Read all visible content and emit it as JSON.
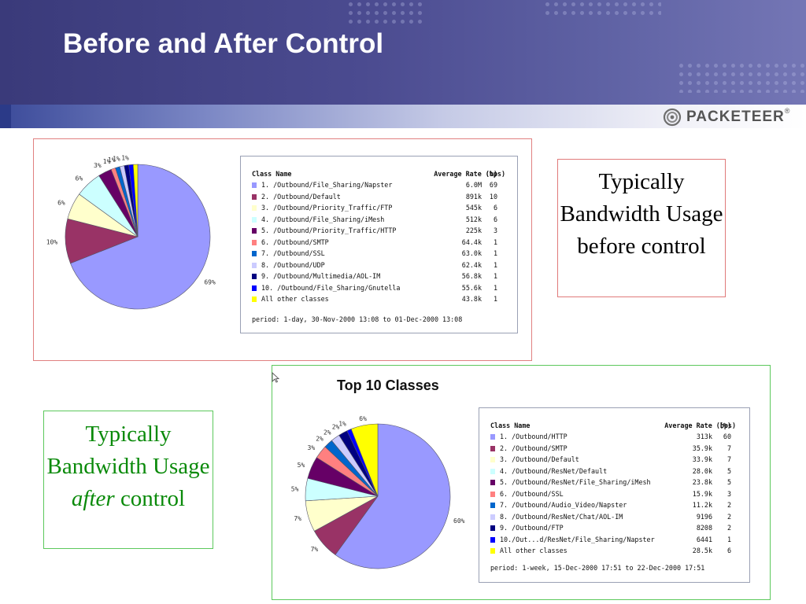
{
  "slide": {
    "title": "Before and After Control",
    "logo_text": "PACKETEER",
    "logo_mark": "®",
    "caption_before": "Typically Bandwidth Usage before control",
    "caption_after_prefix": "Typically Bandwidth Usage ",
    "caption_after_emph": "after",
    "caption_after_suffix": " control",
    "colors": {
      "header": "#4b4b90",
      "before_frame": "#e08080",
      "after_frame": "#5cc85c",
      "after_caption_text": "#0a8a0a"
    }
  },
  "chart_data": [
    {
      "type": "pie",
      "title": "",
      "legend_header": {
        "name": "Class Name",
        "rate": "Average Rate (bps)",
        "percent": "(%)"
      },
      "categories": [
        "1. /Outbound/File_Sharing/Napster",
        "2. /Outbound/Default",
        "3. /Outbound/Priority_Traffic/FTP",
        "4. /Outbound/File_Sharing/iMesh",
        "5. /Outbound/Priority_Traffic/HTTP",
        "6. /Outbound/SMTP",
        "7. /Outbound/SSL",
        "8. /Outbound/UDP",
        "9. /Outbound/Multimedia/AOL-IM",
        "10. /Outbound/File_Sharing/Gnutella",
        "All other classes"
      ],
      "rates": [
        "6.0M",
        "891k",
        "545k",
        "512k",
        "225k",
        "64.4k",
        "63.0k",
        "62.4k",
        "56.8k",
        "55.6k",
        "43.8k"
      ],
      "values": [
        69,
        10,
        6,
        6,
        3,
        1,
        1,
        1,
        1,
        1,
        1
      ],
      "slice_labels": [
        "69%",
        "10%",
        "6%",
        "6%",
        "3%",
        "1%",
        "1%",
        "1%",
        "1%",
        "",
        ""
      ],
      "colors": [
        "#9999ff",
        "#993366",
        "#ffffcc",
        "#ccffff",
        "#660066",
        "#ff8080",
        "#0066cc",
        "#ccccff",
        "#000080",
        "#0000ff",
        "#ffff00"
      ],
      "period": "period: 1-day, 30-Nov-2000 13:08 to 01-Dec-2000 13:08"
    },
    {
      "type": "pie",
      "title": "Top 10 Classes",
      "legend_header": {
        "name": "Class Name",
        "rate": "Average Rate (bps)",
        "percent": "(%)"
      },
      "categories": [
        "1. /Outbound/HTTP",
        "2. /Outbound/SMTP",
        "3. /Outbound/Default",
        "4. /Outbound/ResNet/Default",
        "5. /Outbound/ResNet/File_Sharing/iMesh",
        "6. /Outbound/SSL",
        "7. /Outbound/Audio_Video/Napster",
        "8. /Outbound/ResNet/Chat/AOL-IM",
        "9. /Outbound/FTP",
        "10./Out...d/ResNet/File_Sharing/Napster",
        "All other classes"
      ],
      "rates": [
        "313k",
        "35.9k",
        "33.9k",
        "28.0k",
        "23.8k",
        "15.9k",
        "11.2k",
        "9196",
        "8208",
        "6441",
        "28.5k"
      ],
      "values": [
        60,
        7,
        7,
        5,
        5,
        3,
        2,
        2,
        2,
        1,
        6
      ],
      "slice_labels": [
        "60%",
        "7%",
        "7%",
        "5%",
        "5%",
        "3%",
        "2%",
        "2%",
        "2%",
        "1%",
        "6%"
      ],
      "colors": [
        "#9999ff",
        "#993366",
        "#ffffcc",
        "#ccffff",
        "#660066",
        "#ff8080",
        "#0066cc",
        "#ccccff",
        "#000080",
        "#0000ff",
        "#ffff00"
      ],
      "period": "period: 1-week, 15-Dec-2000 17:51 to 22-Dec-2000 17:51"
    }
  ]
}
